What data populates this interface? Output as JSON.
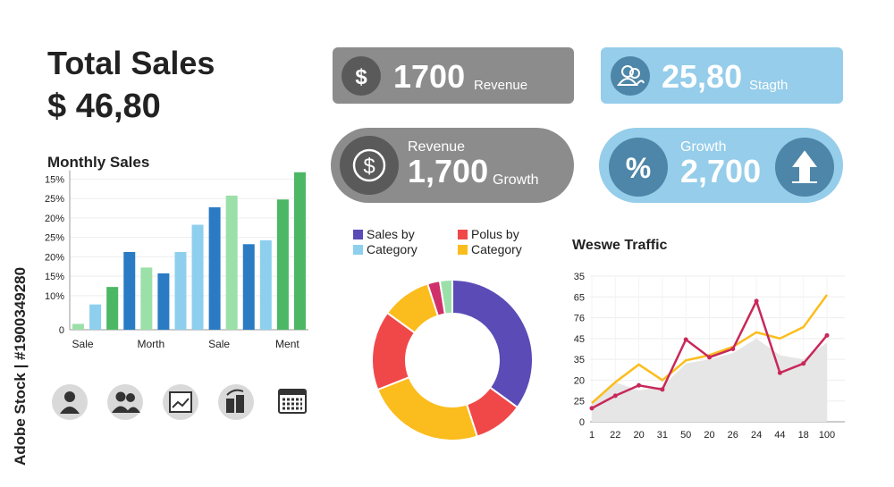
{
  "header": {
    "title": "Total Sales",
    "value": "$ 46,80"
  },
  "cards": [
    {
      "icon": "$",
      "value": "1700",
      "label": "Revenue"
    },
    {
      "value": "25,80",
      "label": "Stagth"
    },
    {
      "icon": "$",
      "label": "Revenue",
      "value": "1,700",
      "sublabel": "Growth"
    },
    {
      "icon": "%",
      "label": "Growth",
      "value": "2,700"
    }
  ],
  "watermark": "Adobe Stock | #1900349280",
  "chart_data": [
    {
      "type": "bar",
      "title": "Monthly Sales",
      "categories": [
        "Sale",
        null,
        null,
        null,
        "Morth",
        null,
        null,
        null,
        "Sale",
        null,
        null,
        null,
        "Ment",
        null
      ],
      "values": [
        3,
        13,
        22,
        40,
        32,
        29,
        40,
        54,
        63,
        69,
        44,
        46,
        67,
        81
      ],
      "colors": [
        "#9be0a8",
        "#8ecfee",
        "#4cb764",
        "#2a7bc4",
        "#9be0a8",
        "#2a7bc4",
        "#8ecfee",
        "#8ecfee",
        "#2a7bc4",
        "#9be0a8",
        "#2a7bc4",
        "#8ecfee",
        "#4cb764",
        "#4cb764"
      ],
      "ylim": [
        0,
        82
      ],
      "yticks": [
        0,
        {
          "value": 17.5,
          "label": "10%"
        },
        {
          "value": 27.5,
          "label": "15%"
        },
        {
          "value": 37.5,
          "label": "20%"
        },
        {
          "value": 47.5,
          "label": "25%"
        },
        {
          "value": 57.5,
          "label": "20%"
        },
        {
          "value": 67.5,
          "label": "25%"
        },
        {
          "value": 77.5,
          "label": "15%"
        }
      ],
      "grid": true
    },
    {
      "type": "pie",
      "legend": [
        {
          "name": "Sales by",
          "color": "#5b4bb7"
        },
        {
          "name": "Polus by",
          "color": "#f04848"
        },
        {
          "name": "Category",
          "color": "#8ecfee"
        },
        {
          "name": "Category",
          "color": "#fbbd1d"
        }
      ],
      "values": [
        35,
        10,
        24,
        16,
        10,
        2.5,
        2.5
      ],
      "colors": [
        "#5b4bb7",
        "#f04848",
        "#fbbd1d",
        "#f04848",
        "#fbbd1d",
        "#d0306a",
        "#9be0a8"
      ]
    },
    {
      "type": "line",
      "title": "Weswe Traffic",
      "categories": [
        "1",
        "22",
        "20",
        "31",
        "50",
        "20",
        "26",
        "24",
        "44",
        "18",
        "100"
      ],
      "series": [
        {
          "color": "#e6e6e6",
          "fill": true,
          "values": [
            9,
            19,
            15,
            17,
            28,
            30,
            33,
            40,
            32,
            30,
            38
          ]
        },
        {
          "color": "#fbbd1d",
          "values": [
            9,
            19,
            27.5,
            20,
            29.5,
            32,
            36,
            43,
            40,
            45.5,
            61
          ]
        },
        {
          "color": "#c8285a",
          "markers": true,
          "values": [
            6.5,
            12.5,
            17.5,
            15.5,
            39.5,
            31,
            35,
            58,
            23.5,
            28,
            41.5
          ]
        }
      ],
      "ylim": [
        0,
        70
      ],
      "yticks": [
        0,
        {
          "value": 10,
          "label": "25"
        },
        20,
        {
          "value": 30,
          "label": "35"
        },
        {
          "value": 40,
          "label": "45"
        },
        {
          "value": 50,
          "label": "76"
        },
        {
          "value": 60,
          "label": "65"
        },
        {
          "value": 70,
          "label": "35"
        }
      ],
      "grid": true
    }
  ]
}
